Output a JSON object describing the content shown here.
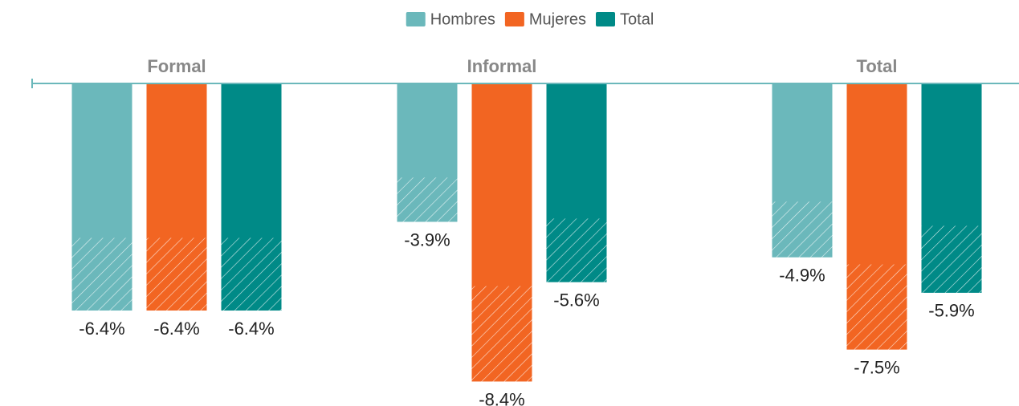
{
  "chart_data": {
    "type": "bar",
    "categories": [
      "Formal",
      "Informal",
      "Total"
    ],
    "series": [
      {
        "name": "Hombres",
        "color": "#6bb8bb",
        "values": [
          -6.4,
          -3.9,
          -4.9
        ],
        "value_labels": [
          "-6.4%",
          "-3.9%",
          "-4.9%"
        ]
      },
      {
        "name": "Mujeres",
        "color": "#f26522",
        "values": [
          -6.4,
          -8.4,
          -7.5
        ],
        "value_labels": [
          "-6.4%",
          "-8.4%",
          "-7.5%"
        ]
      },
      {
        "name": "Total",
        "color": "#008a87",
        "values": [
          -6.4,
          -5.6,
          -5.9
        ],
        "value_labels": [
          "-6.4%",
          "-5.6%",
          "-5.9%"
        ]
      }
    ],
    "ylim": [
      -9,
      0
    ],
    "legend": "top"
  }
}
